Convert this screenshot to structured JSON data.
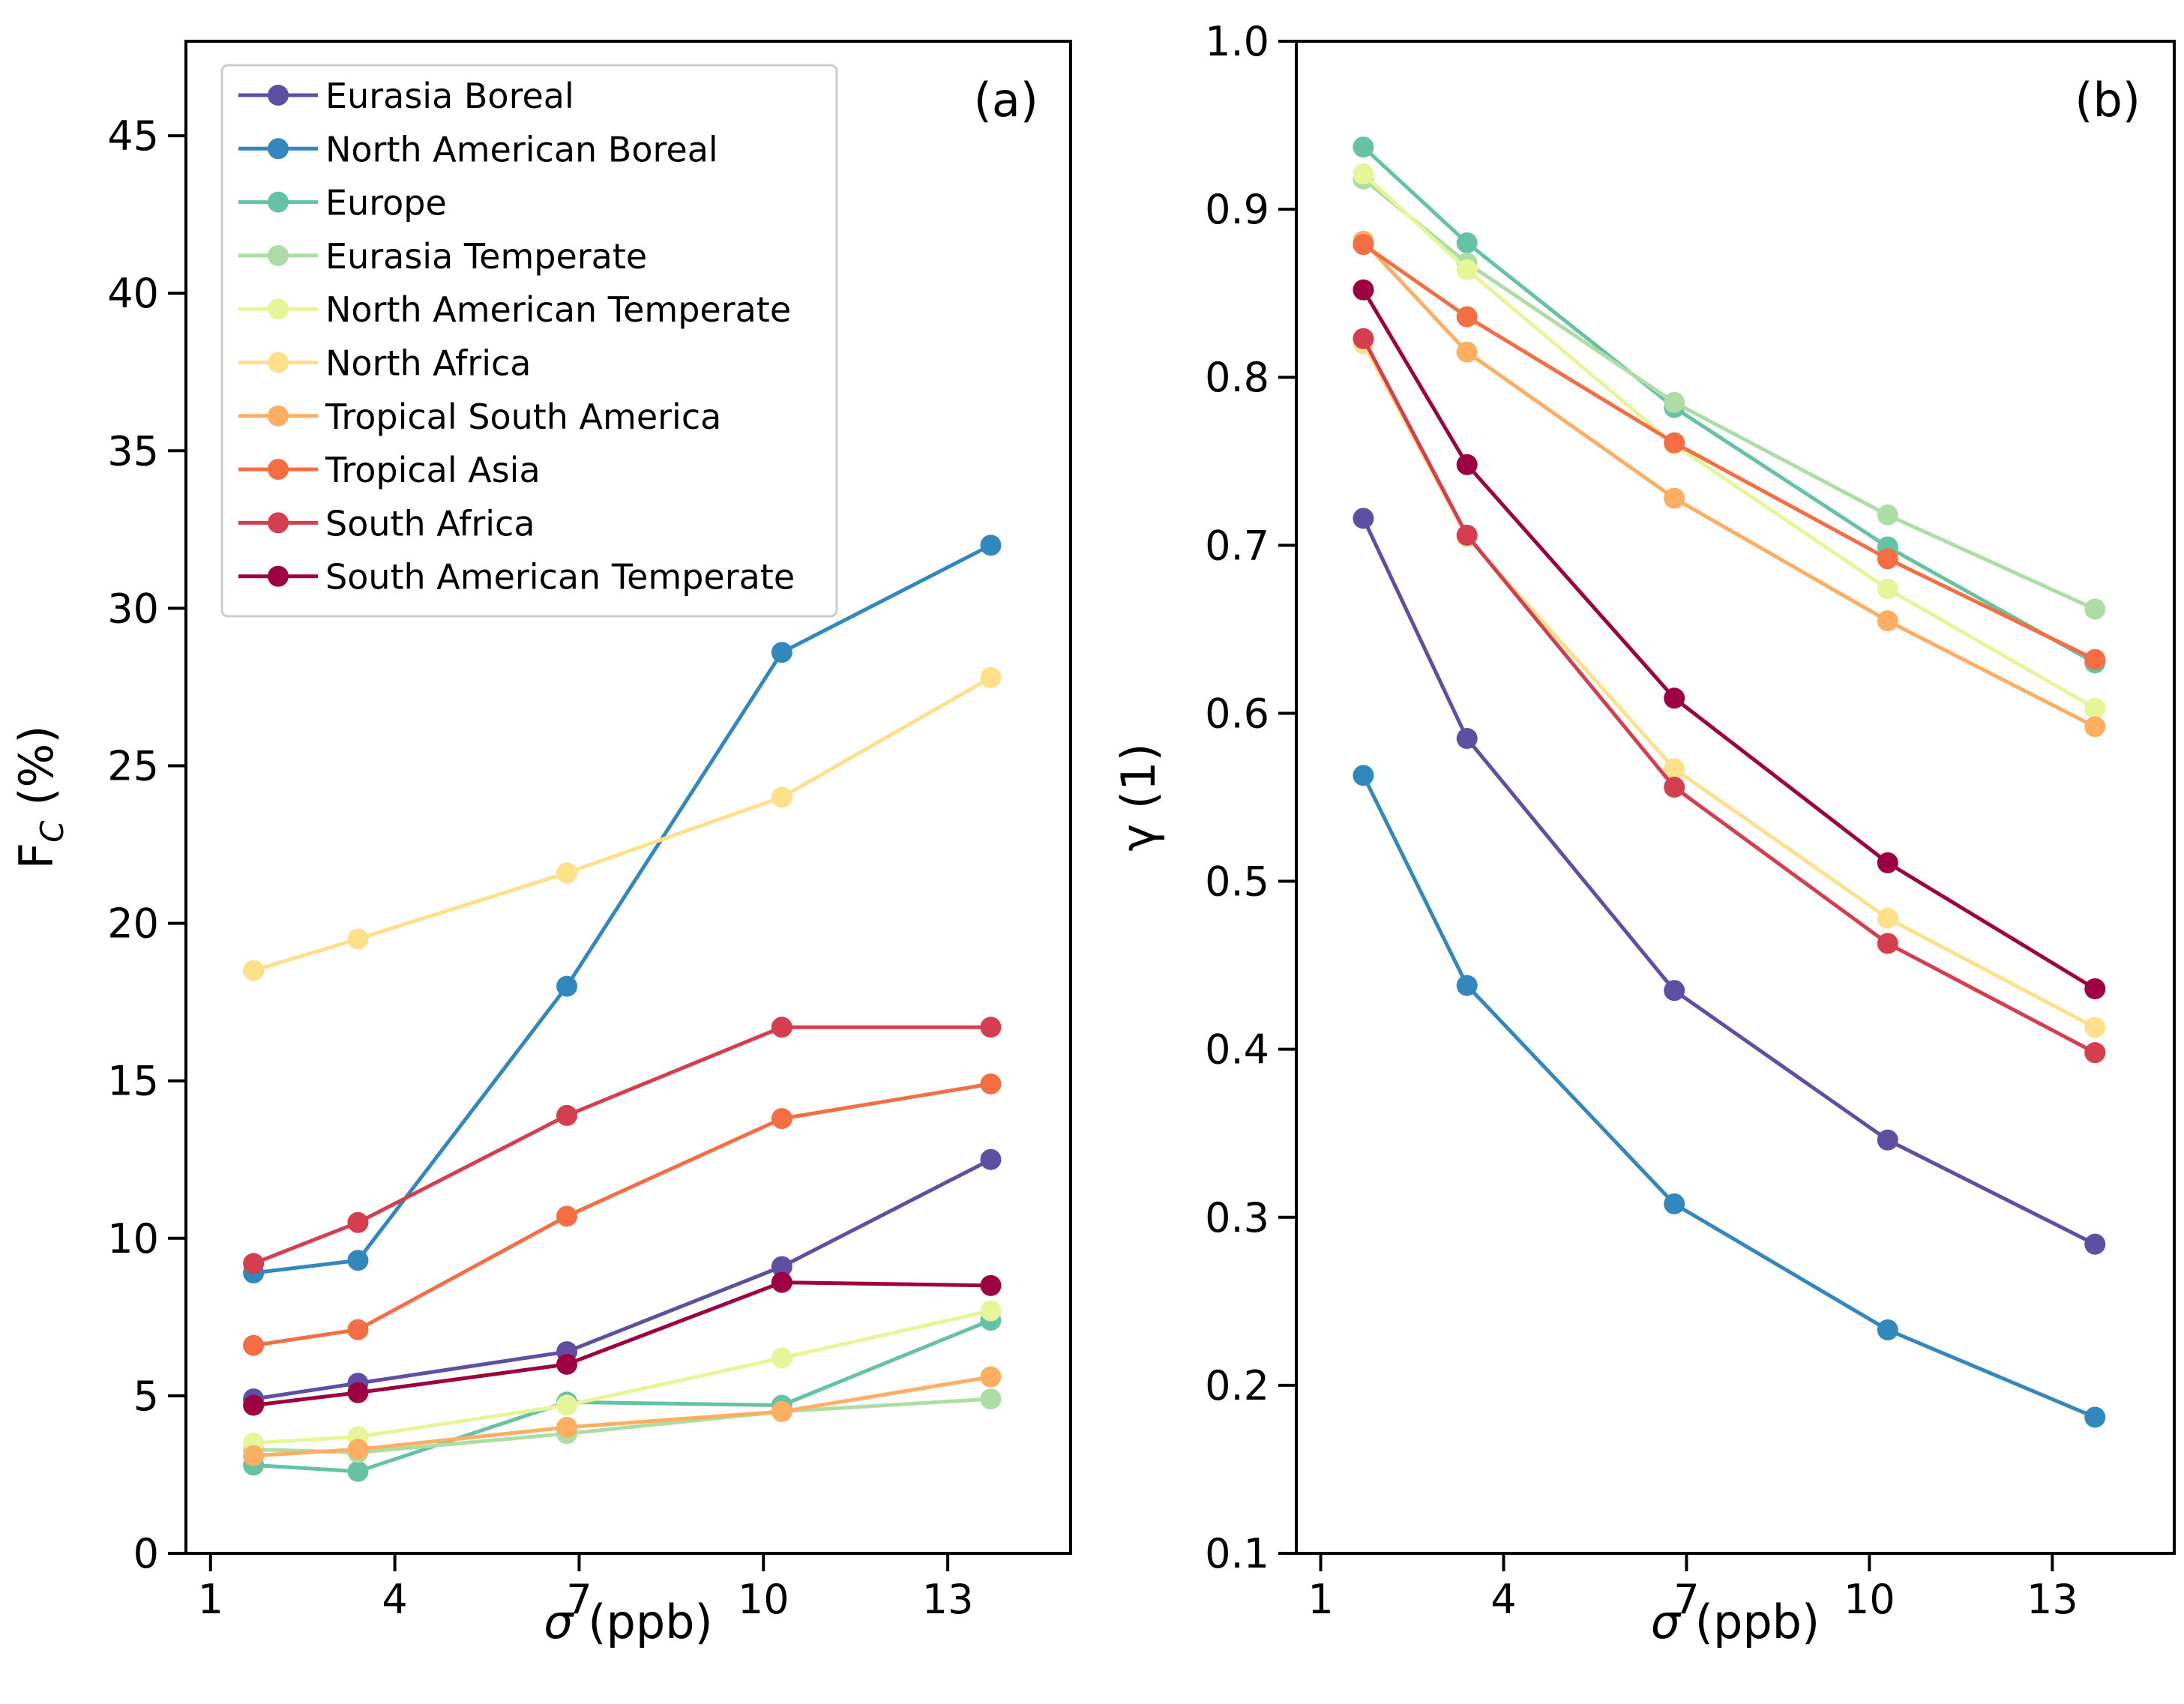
{
  "figure": {
    "legend_entries": [
      "Eurasia Boreal",
      "North American Boreal",
      "Europe",
      "Eurasia Temperate",
      "North American Temperate",
      "North Africa",
      "Tropical South America",
      "Tropical Asia",
      "South Africa",
      "South American Temperate"
    ],
    "legend_colors": [
      "#5e4fa2",
      "#3288bd",
      "#66c2a5",
      "#abdda4",
      "#e6f598",
      "#fee08b",
      "#fdae61",
      "#f46d43",
      "#d53e4f",
      "#9e0142"
    ]
  },
  "chart_data": [
    {
      "type": "line",
      "panel_label": "(a)",
      "title": "",
      "xlabel_main": "σ",
      "xlabel_rest": " (ppb)",
      "ylabel_main": "F",
      "ylabel_sub": "C",
      "ylabel_rest": " (%)",
      "xlim": [
        0.6,
        15
      ],
      "ylim": [
        0,
        48
      ],
      "xticks": [
        1,
        4,
        7,
        10,
        13
      ],
      "xtick_labels": [
        "1",
        "4",
        "7",
        "10",
        "13"
      ],
      "yticks": [
        0,
        5,
        10,
        15,
        20,
        25,
        30,
        35,
        40,
        45
      ],
      "ytick_labels": [
        "0",
        "5",
        "10",
        "15",
        "20",
        "25",
        "30",
        "35",
        "40",
        "45"
      ],
      "x": [
        1.7,
        3.4,
        6.8,
        10.3,
        13.7
      ],
      "legend_location": "upper-left",
      "series": [
        {
          "name": "Eurasia Boreal",
          "color": "#5e4fa2",
          "values": [
            4.9,
            5.4,
            6.4,
            9.1,
            12.5
          ]
        },
        {
          "name": "North American Boreal",
          "color": "#3288bd",
          "values": [
            8.9,
            9.3,
            18.0,
            28.6,
            32.0
          ]
        },
        {
          "name": "Europe",
          "color": "#66c2a5",
          "values": [
            2.8,
            2.6,
            4.8,
            4.7,
            7.4
          ]
        },
        {
          "name": "Eurasia Temperate",
          "color": "#abdda4",
          "values": [
            3.3,
            3.2,
            3.8,
            4.5,
            4.9
          ]
        },
        {
          "name": "North American Temperate",
          "color": "#e6f598",
          "values": [
            3.5,
            3.7,
            4.7,
            6.2,
            7.7
          ]
        },
        {
          "name": "North Africa",
          "color": "#fee08b",
          "values": [
            18.5,
            19.5,
            21.6,
            24.0,
            27.8
          ]
        },
        {
          "name": "Tropical South America",
          "color": "#fdae61",
          "values": [
            3.1,
            3.3,
            4.0,
            4.5,
            5.6
          ]
        },
        {
          "name": "Tropical Asia",
          "color": "#f46d43",
          "values": [
            6.6,
            7.1,
            10.7,
            13.8,
            14.9
          ]
        },
        {
          "name": "South Africa",
          "color": "#d53e4f",
          "values": [
            9.2,
            10.5,
            13.9,
            16.7,
            16.7
          ]
        },
        {
          "name": "South American Temperate",
          "color": "#9e0142",
          "values": [
            4.7,
            5.1,
            6.0,
            8.6,
            8.5
          ]
        }
      ]
    },
    {
      "type": "line",
      "panel_label": "(b)",
      "title": "",
      "xlabel_main": "σ",
      "xlabel_rest": " (ppb)",
      "ylabel_main": "γ (1)",
      "xlim": [
        0.6,
        15
      ],
      "ylim": [
        0.1,
        1.0
      ],
      "xticks": [
        1,
        4,
        7,
        10,
        13
      ],
      "xtick_labels": [
        "1",
        "4",
        "7",
        "10",
        "13"
      ],
      "yticks": [
        0.1,
        0.2,
        0.3,
        0.4,
        0.5,
        0.6,
        0.7,
        0.8,
        0.9,
        1.0
      ],
      "ytick_labels": [
        "0.1",
        "0.2",
        "0.3",
        "0.4",
        "0.5",
        "0.6",
        "0.7",
        "0.8",
        "0.9",
        "1.0"
      ],
      "x": [
        1.7,
        3.4,
        6.8,
        10.3,
        13.7
      ],
      "series": [
        {
          "name": "Eurasia Boreal",
          "color": "#5e4fa2",
          "values": [
            0.716,
            0.585,
            0.435,
            0.346,
            0.284
          ]
        },
        {
          "name": "North American Boreal",
          "color": "#3288bd",
          "values": [
            0.563,
            0.438,
            0.308,
            0.233,
            0.181
          ]
        },
        {
          "name": "Europe",
          "color": "#66c2a5",
          "values": [
            0.937,
            0.88,
            0.782,
            0.699,
            0.63
          ]
        },
        {
          "name": "Eurasia Temperate",
          "color": "#abdda4",
          "values": [
            0.918,
            0.868,
            0.785,
            0.718,
            0.662
          ]
        },
        {
          "name": "North American Temperate",
          "color": "#e6f598",
          "values": [
            0.921,
            0.864,
            0.76,
            0.674,
            0.603
          ]
        },
        {
          "name": "North Africa",
          "color": "#fee08b",
          "values": [
            0.82,
            0.705,
            0.567,
            0.478,
            0.413
          ]
        },
        {
          "name": "Tropical South America",
          "color": "#fdae61",
          "values": [
            0.881,
            0.815,
            0.728,
            0.655,
            0.592
          ]
        },
        {
          "name": "Tropical Asia",
          "color": "#f46d43",
          "values": [
            0.879,
            0.836,
            0.761,
            0.692,
            0.632
          ]
        },
        {
          "name": "South Africa",
          "color": "#d53e4f",
          "values": [
            0.823,
            0.706,
            0.556,
            0.463,
            0.398
          ]
        },
        {
          "name": "South American Temperate",
          "color": "#9e0142",
          "values": [
            0.852,
            0.748,
            0.609,
            0.511,
            0.436
          ]
        }
      ]
    }
  ]
}
